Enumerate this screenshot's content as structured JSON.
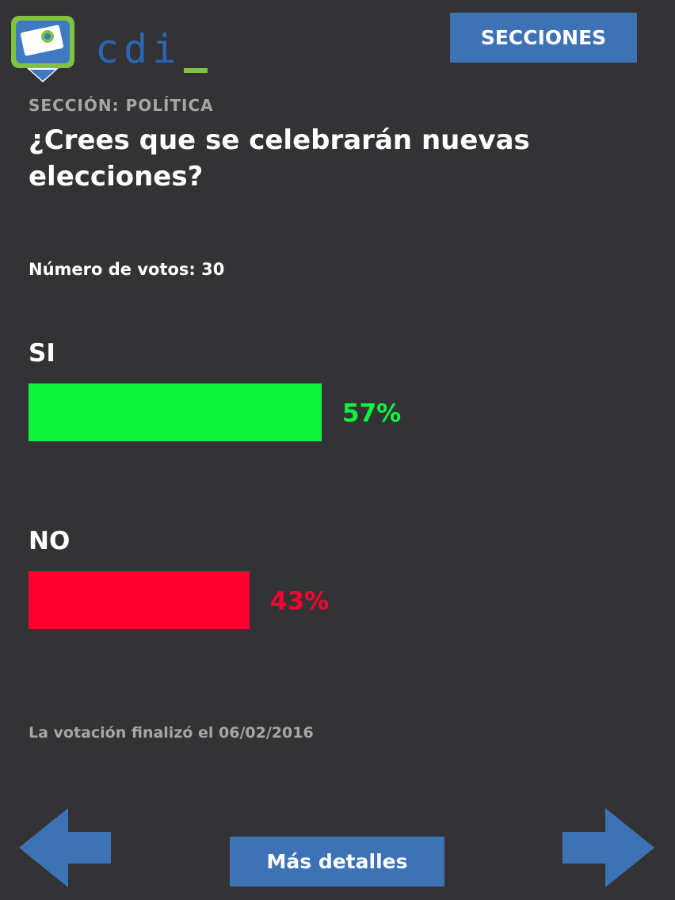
{
  "header": {
    "logo_text": "cdi",
    "sections_button": "SECCIONES"
  },
  "poll": {
    "section": "SECCIÓN: POLÍTICA",
    "question": "¿Crees que se celebrarán nuevas elecciones?",
    "votes_text": "Número de votos: 30",
    "options": [
      {
        "label": "SI",
        "percent_text": "57%",
        "percent": 57,
        "color": "#10f43e"
      },
      {
        "label": "NO",
        "percent_text": "43%",
        "percent": 43,
        "color": "#fd0030"
      }
    ],
    "ended_text": "La votación finalizó el 06/02/2016"
  },
  "footer": {
    "details_button": "Más detalles",
    "prev_icon": "arrow-left-icon",
    "next_icon": "arrow-right-icon"
  },
  "colors": {
    "background": "#333336",
    "accent": "#3d73b5",
    "logo_green": "#7fc341"
  }
}
